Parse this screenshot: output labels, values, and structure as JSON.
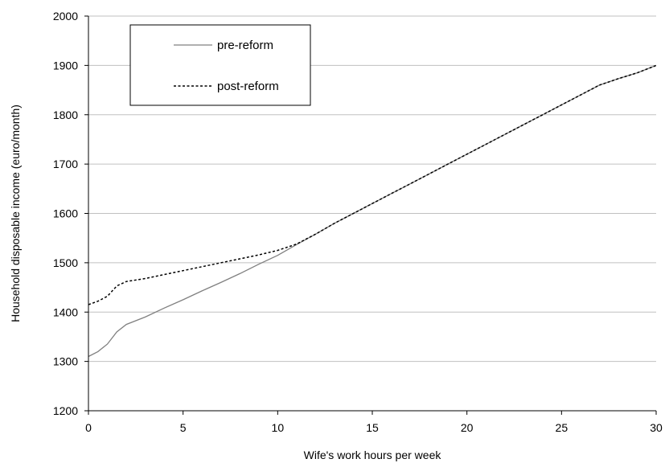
{
  "chart_data": {
    "type": "line",
    "title": "",
    "xlabel": "Wife's work hours per week",
    "ylabel": "Household disposable income (euro/month)",
    "xlim": [
      0,
      30
    ],
    "ylim": [
      1200,
      2000
    ],
    "xticks": [
      0,
      5,
      10,
      15,
      20,
      25,
      30
    ],
    "yticks": [
      1200,
      1300,
      1400,
      1500,
      1600,
      1700,
      1800,
      1900,
      2000
    ],
    "grid": "horizontal",
    "legend_position": "top-left",
    "series": [
      {
        "name": "pre-reform",
        "style": "solid",
        "color": "#808080",
        "x": [
          0,
          0.5,
          1,
          1.5,
          2,
          3,
          4,
          5,
          6,
          7,
          8,
          9,
          10,
          11,
          12,
          13,
          14,
          15,
          16,
          17,
          18,
          19,
          20,
          21,
          22,
          23,
          24,
          25,
          26,
          27,
          28,
          29,
          30
        ],
        "y": [
          1310,
          1320,
          1335,
          1360,
          1375,
          1390,
          1408,
          1425,
          1443,
          1460,
          1478,
          1497,
          1515,
          1537,
          1558,
          1580,
          1600,
          1620,
          1640,
          1660,
          1680,
          1700,
          1720,
          1740,
          1760,
          1780,
          1800,
          1820,
          1840,
          1860,
          1873,
          1885,
          1900
        ]
      },
      {
        "name": "post-reform",
        "style": "dashed",
        "color": "#000000",
        "x": [
          0,
          0.5,
          1,
          1.5,
          2,
          3,
          4,
          5,
          6,
          7,
          8,
          9,
          10,
          11,
          12,
          13,
          14,
          15,
          16,
          17,
          18,
          19,
          20,
          21,
          22,
          23,
          24,
          25,
          26,
          27,
          28,
          29,
          30
        ],
        "y": [
          1415,
          1422,
          1432,
          1453,
          1462,
          1468,
          1476,
          1484,
          1492,
          1500,
          1508,
          1516,
          1525,
          1538,
          1558,
          1580,
          1600,
          1620,
          1640,
          1660,
          1680,
          1700,
          1720,
          1740,
          1760,
          1780,
          1800,
          1820,
          1840,
          1860,
          1873,
          1885,
          1900
        ]
      }
    ]
  }
}
